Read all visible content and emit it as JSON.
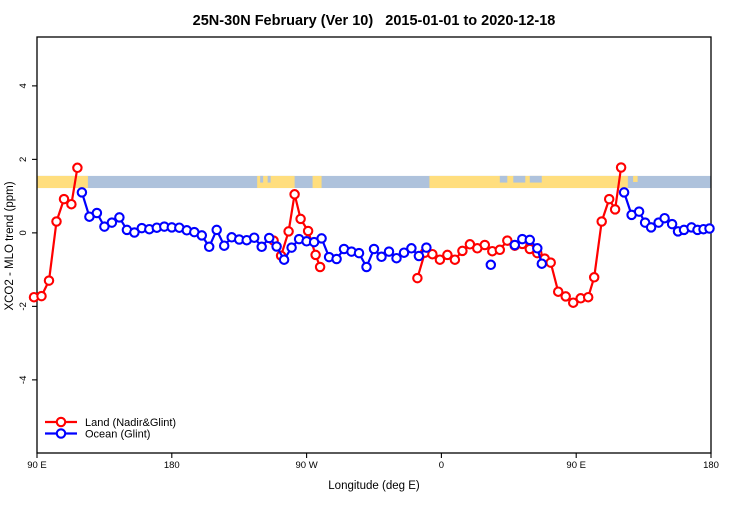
{
  "chart_data": {
    "type": "line",
    "title": "25N-30N February (Ver 10)   2015-01-01 to 2020-12-18",
    "xlabel": "Longitude (deg E)",
    "ylabel": "XCO2 - MLO trend (ppm)",
    "xlim": [
      90,
      540
    ],
    "ylim": [
      -5.99,
      5.33
    ],
    "x_ticks": [
      {
        "lon": 90,
        "label": "90 E"
      },
      {
        "lon": 180,
        "label": "180"
      },
      {
        "lon": 270,
        "label": "90 W"
      },
      {
        "lon": 360,
        "label": "0"
      },
      {
        "lon": 450,
        "label": "90 E"
      },
      {
        "lon": 540,
        "label": "180"
      }
    ],
    "y_ticks": [
      {
        "value": -4,
        "label": "-4"
      },
      {
        "value": -2,
        "label": "-2"
      },
      {
        "value": 0,
        "label": "0"
      },
      {
        "value": 2,
        "label": "2"
      },
      {
        "value": 4,
        "label": "4"
      }
    ],
    "grid": false,
    "map_band": {
      "y_top": 1.55,
      "y_bottom": 1.22,
      "ocean_color": "#AEC2DC",
      "land_color": "#FFDE7E",
      "land_segments": [
        [
          90,
          124
        ],
        [
          237,
          262
        ],
        [
          274,
          280
        ],
        [
          352,
          484.5
        ]
      ],
      "ocean_patches_upper": [
        [
          239,
          241
        ],
        [
          244,
          246
        ],
        [
          399,
          404
        ],
        [
          408,
          416
        ],
        [
          419,
          427
        ]
      ],
      "land_patches_upper": [
        [
          488,
          491
        ]
      ]
    },
    "series": [
      {
        "name": "Land (Nadir&Glint)",
        "color": "#FF0000",
        "segments": [
          [
            [
              88,
              -1.75
            ],
            [
              93,
              -1.72
            ],
            [
              98,
              -1.3
            ],
            [
              103,
              0.31
            ],
            [
              108,
              0.92
            ],
            [
              113,
              0.78
            ],
            [
              117,
              1.77
            ]
          ],
          [
            [
              248,
              -0.21
            ],
            [
              253,
              -0.62
            ],
            [
              258,
              0.04
            ],
            [
              262,
              1.05
            ],
            [
              266,
              0.38
            ],
            [
              271,
              0.05
            ],
            [
              276,
              -0.6
            ],
            [
              279,
              -0.93
            ]
          ],
          [
            [
              344,
              -1.23
            ],
            [
              349,
              -0.54
            ],
            [
              354,
              -0.58
            ],
            [
              359,
              -0.73
            ],
            [
              364,
              -0.6
            ],
            [
              369,
              -0.73
            ],
            [
              374,
              -0.49
            ],
            [
              379,
              -0.31
            ],
            [
              384,
              -0.42
            ],
            [
              389,
              -0.33
            ],
            [
              394,
              -0.5
            ],
            [
              399,
              -0.46
            ],
            [
              404,
              -0.21
            ],
            [
              409,
              -0.35
            ],
            [
              414,
              -0.3
            ],
            [
              419,
              -0.44
            ],
            [
              424,
              -0.55
            ],
            [
              429,
              -0.7
            ],
            [
              433,
              -0.81
            ],
            [
              438,
              -1.6
            ],
            [
              443,
              -1.73
            ],
            [
              448,
              -1.9
            ],
            [
              453,
              -1.78
            ],
            [
              458,
              -1.75
            ],
            [
              462,
              -1.21
            ],
            [
              467,
              0.31
            ],
            [
              472,
              0.92
            ],
            [
              476,
              0.64
            ],
            [
              480,
              1.78
            ]
          ]
        ]
      },
      {
        "name": "Ocean (Glint)",
        "color": "#0000FF",
        "segments": [
          [
            [
              120,
              1.1
            ],
            [
              125,
              0.44
            ],
            [
              130,
              0.54
            ],
            [
              135,
              0.17
            ],
            [
              140,
              0.28
            ],
            [
              145,
              0.42
            ],
            [
              150,
              0.08
            ],
            [
              155,
              0.01
            ],
            [
              160,
              0.13
            ],
            [
              165,
              0.1
            ],
            [
              170,
              0.14
            ],
            [
              175,
              0.17
            ],
            [
              180,
              0.15
            ],
            [
              185,
              0.14
            ],
            [
              190,
              0.07
            ],
            [
              195,
              0.02
            ],
            [
              200,
              -0.07
            ],
            [
              205,
              -0.38
            ],
            [
              210,
              0.08
            ],
            [
              215,
              -0.35
            ],
            [
              220,
              -0.12
            ],
            [
              225,
              -0.18
            ],
            [
              230,
              -0.2
            ],
            [
              235,
              -0.13
            ],
            [
              240,
              -0.38
            ],
            [
              245,
              -0.14
            ],
            [
              250,
              -0.37
            ],
            [
              255,
              -0.73
            ],
            [
              260,
              -0.4
            ],
            [
              265,
              -0.17
            ],
            [
              270,
              -0.23
            ],
            [
              275,
              -0.25
            ],
            [
              280,
              -0.15
            ],
            [
              285,
              -0.66
            ],
            [
              290,
              -0.71
            ],
            [
              295,
              -0.44
            ],
            [
              300,
              -0.51
            ],
            [
              305,
              -0.55
            ],
            [
              310,
              -0.93
            ],
            [
              315,
              -0.44
            ],
            [
              320,
              -0.65
            ],
            [
              325,
              -0.51
            ],
            [
              330,
              -0.69
            ],
            [
              335,
              -0.54
            ],
            [
              340,
              -0.42
            ],
            [
              345,
              -0.63
            ],
            [
              350,
              -0.4
            ]
          ],
          [
            [
              393,
              -0.87
            ]
          ],
          [
            [
              409,
              -0.33
            ],
            [
              414,
              -0.17
            ],
            [
              419,
              -0.19
            ],
            [
              424,
              -0.42
            ],
            [
              427,
              -0.84
            ]
          ],
          [
            [
              482,
              1.1
            ],
            [
              487,
              0.49
            ],
            [
              492,
              0.58
            ],
            [
              496,
              0.28
            ],
            [
              500,
              0.15
            ],
            [
              505,
              0.28
            ],
            [
              509,
              0.4
            ],
            [
              514,
              0.24
            ],
            [
              518,
              0.04
            ],
            [
              522,
              0.08
            ],
            [
              527,
              0.15
            ],
            [
              531,
              0.08
            ],
            [
              535,
              0.1
            ],
            [
              539,
              0.12
            ]
          ]
        ]
      }
    ],
    "legend": {
      "position": "bottom-left",
      "items": [
        {
          "label": "Land (Nadir&Glint)",
          "color": "#FF0000"
        },
        {
          "label": "Ocean (Glint)",
          "color": "#0000FF"
        }
      ]
    }
  }
}
